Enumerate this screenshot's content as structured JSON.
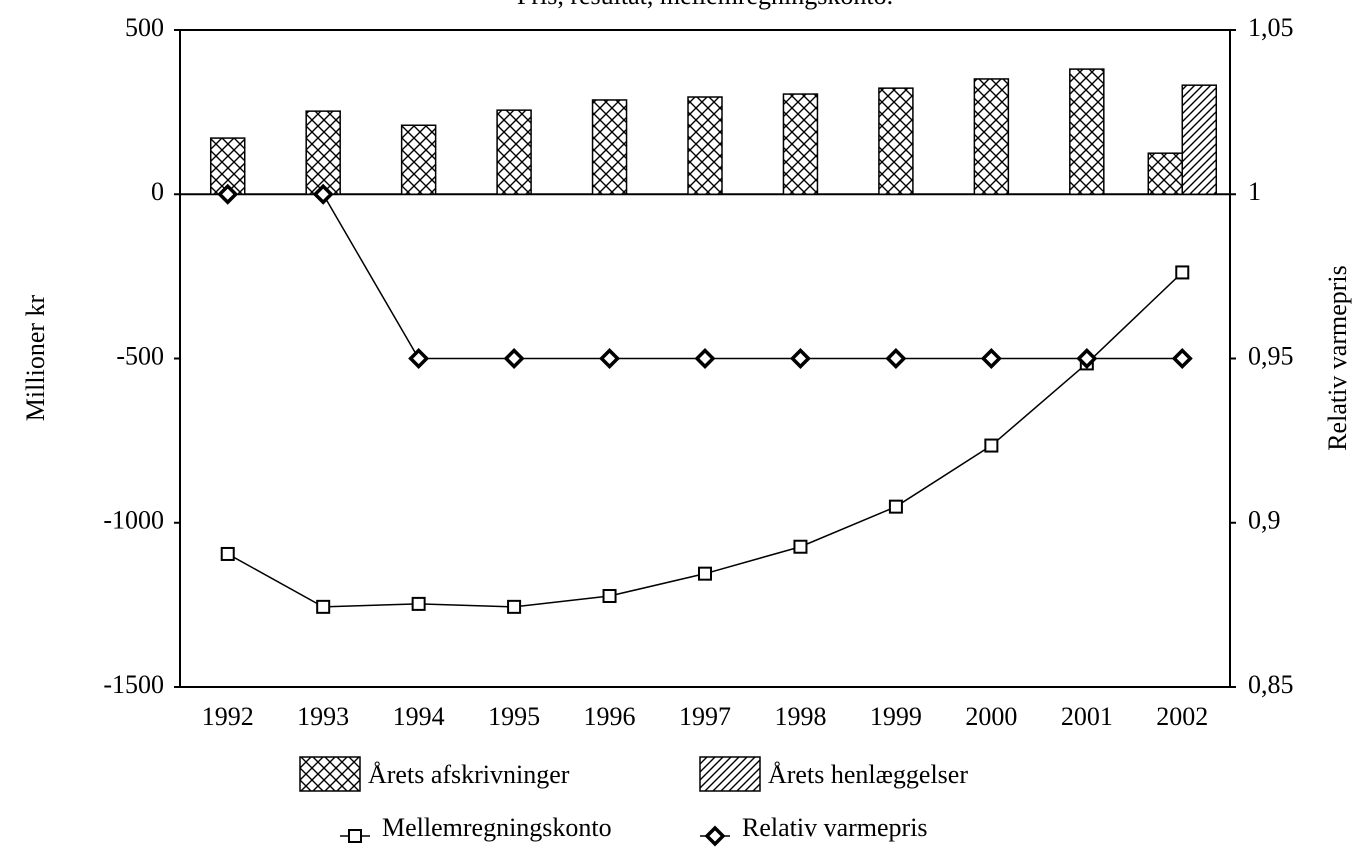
{
  "chart_data": {
    "type": "bar_line",
    "title": "Pris, resultat, mellemregningskonto.",
    "ylabel": "Millioner kr",
    "y2label": "Relativ varmepris",
    "categories": [
      "1992",
      "1993",
      "1994",
      "1995",
      "1996",
      "1997",
      "1998",
      "1999",
      "2000",
      "2001",
      "2002"
    ],
    "ylim": [
      -1500,
      500
    ],
    "yticks": [
      -1500,
      -1000,
      -500,
      0,
      500
    ],
    "y2lim": [
      0.85,
      1.05
    ],
    "y2ticks": [
      {
        "value": 0.85,
        "label": "0,85"
      },
      {
        "value": 0.9,
        "label": "0,9"
      },
      {
        "value": 0.95,
        "label": "0,95"
      },
      1,
      {
        "value": 1.05,
        "label": "1,05"
      }
    ],
    "series": [
      {
        "name": "Årets afskrivninger",
        "type": "bar",
        "pattern": "crosshatch",
        "color": "#000000",
        "values": [
          171,
          253,
          210,
          256,
          287,
          296,
          305,
          323,
          351,
          381,
          125
        ]
      },
      {
        "name": "Årets henlæggelser",
        "type": "bar",
        "pattern": "diagonal",
        "color": "#000000",
        "values": [
          null,
          null,
          null,
          null,
          null,
          null,
          null,
          null,
          null,
          null,
          332
        ]
      },
      {
        "name": "Mellemregningskonto",
        "type": "line",
        "marker": "square",
        "color": "#000000",
        "values": [
          -1095,
          -1256,
          -1247,
          -1256,
          -1223,
          -1155,
          -1073,
          -951,
          -765,
          -515,
          -238
        ]
      },
      {
        "name": "Relativ varmepris",
        "type": "line",
        "marker": "diamond",
        "axis": "y2",
        "color": "#000000",
        "values": [
          1,
          1,
          0.95,
          0.95,
          0.95,
          0.95,
          0.95,
          0.95,
          0.95,
          0.95,
          0.95
        ]
      }
    ]
  }
}
